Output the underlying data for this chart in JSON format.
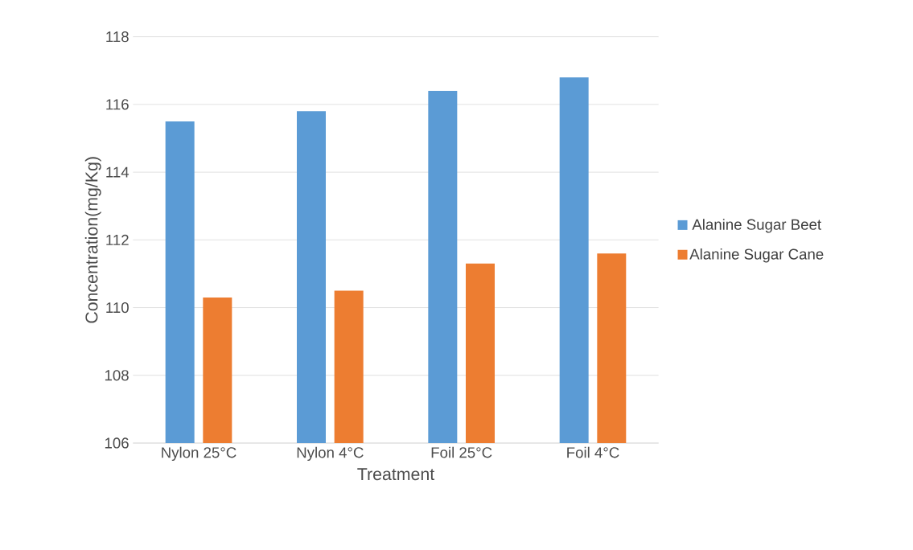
{
  "chart_data": {
    "type": "bar",
    "xlabel": "Treatment",
    "ylabel": "Concentration(mg/Kg)",
    "categories": [
      "Nylon 25°C",
      "Nylon 4°C",
      "Foil 25°C",
      "Foil 4°C"
    ],
    "series": [
      {
        "name": "Alanine Sugar Beet",
        "color": "#5b9bd5",
        "values": [
          115.5,
          115.8,
          116.4,
          116.8
        ]
      },
      {
        "name": "Alanine Sugar Cane",
        "color": "#ed7d31",
        "values": [
          110.3,
          110.5,
          111.3,
          111.6
        ]
      }
    ],
    "ylim": [
      106,
      118
    ],
    "yticks": [
      106,
      108,
      110,
      112,
      114,
      116,
      118
    ],
    "grid": "y",
    "legend": "right"
  }
}
